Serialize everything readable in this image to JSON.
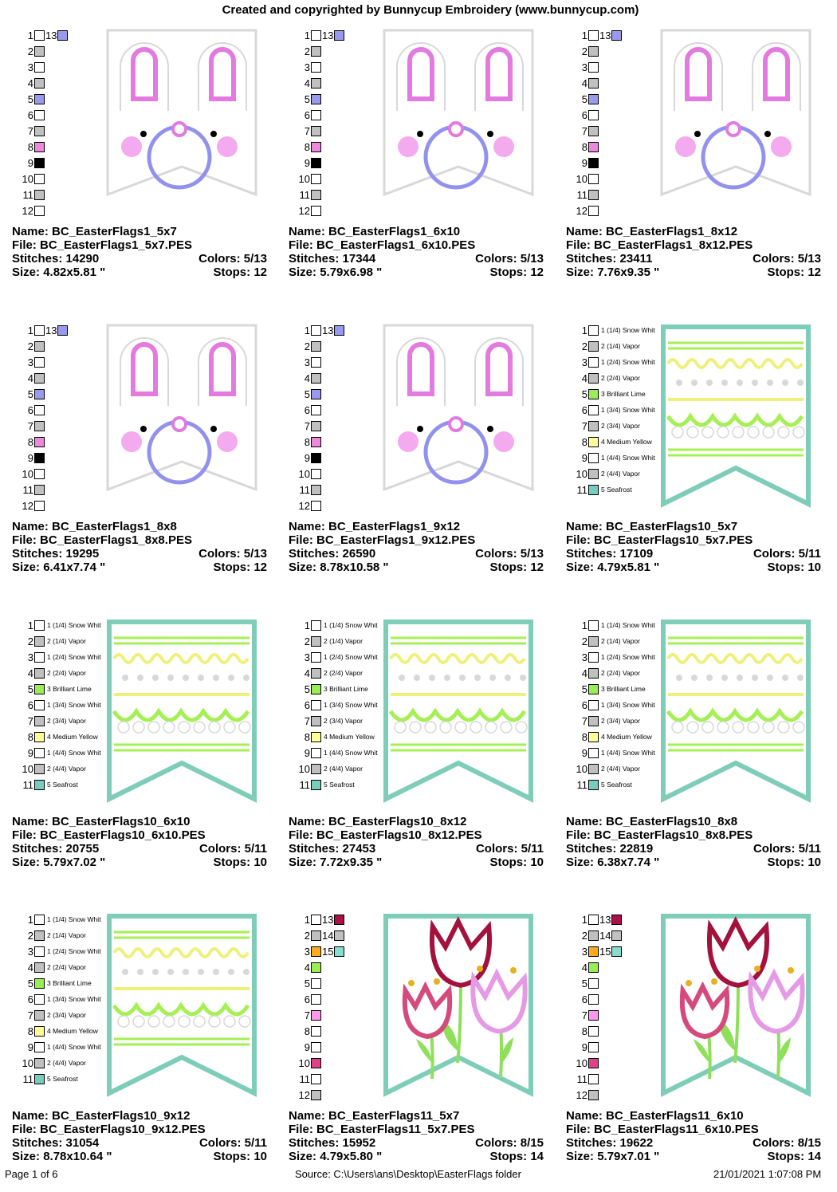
{
  "header": "Created and copyrighted by Bunnycup Embroidery (www.bunnycup.com)",
  "footer": {
    "page": "Page 1 of 6",
    "source": "Source: C:\\Users\\ans\\Desktop\\EasterFlags folder",
    "datetime": "21/01/2021 1:07:08 PM"
  },
  "labels": {
    "name": "Name:",
    "file": "File:",
    "stitches": "Stitches:",
    "colors": "Colors:",
    "size": "Size:",
    "stops": "Stops:"
  },
  "designs": [
    {
      "name": "BC_EasterFlags1_5x7",
      "file": "BC_EasterFlags1_5x7.PES",
      "stitches": "14290",
      "colors": "5/13",
      "size": "4.82x5.81 \"",
      "stops": "12",
      "kind": "bunny"
    },
    {
      "name": "BC_EasterFlags1_6x10",
      "file": "BC_EasterFlags1_6x10.PES",
      "stitches": "17344",
      "colors": "5/13",
      "size": "5.79x6.98 \"",
      "stops": "12",
      "kind": "bunny"
    },
    {
      "name": "BC_EasterFlags1_8x12",
      "file": "BC_EasterFlags1_8x12.PES",
      "stitches": "23411",
      "colors": "5/13",
      "size": "7.76x9.35 \"",
      "stops": "12",
      "kind": "bunny"
    },
    {
      "name": "BC_EasterFlags1_8x8",
      "file": "BC_EasterFlags1_8x8.PES",
      "stitches": "19295",
      "colors": "5/13",
      "size": "6.41x7.74 \"",
      "stops": "12",
      "kind": "bunny"
    },
    {
      "name": "BC_EasterFlags1_9x12",
      "file": "BC_EasterFlags1_9x12.PES",
      "stitches": "26590",
      "colors": "5/13",
      "size": "8.78x10.58 \"",
      "stops": "12",
      "kind": "bunny"
    },
    {
      "name": "BC_EasterFlags10_5x7",
      "file": "BC_EasterFlags10_5x7.PES",
      "stitches": "17109",
      "colors": "5/11",
      "size": "4.79x5.81 \"",
      "stops": "10",
      "kind": "egg"
    },
    {
      "name": "BC_EasterFlags10_6x10",
      "file": "BC_EasterFlags10_6x10.PES",
      "stitches": "20755",
      "colors": "5/11",
      "size": "5.79x7.02 \"",
      "stops": "10",
      "kind": "egg"
    },
    {
      "name": "BC_EasterFlags10_8x12",
      "file": "BC_EasterFlags10_8x12.PES",
      "stitches": "27453",
      "colors": "5/11",
      "size": "7.72x9.35 \"",
      "stops": "10",
      "kind": "egg"
    },
    {
      "name": "BC_EasterFlags10_8x8",
      "file": "BC_EasterFlags10_8x8.PES",
      "stitches": "22819",
      "colors": "5/11",
      "size": "6.38x7.74 \"",
      "stops": "10",
      "kind": "egg"
    },
    {
      "name": "BC_EasterFlags10_9x12",
      "file": "BC_EasterFlags10_9x12.PES",
      "stitches": "31054",
      "colors": "5/11",
      "size": "8.78x10.64 \"",
      "stops": "10",
      "kind": "egg"
    },
    {
      "name": "BC_EasterFlags11_5x7",
      "file": "BC_EasterFlags11_5x7.PES",
      "stitches": "15952",
      "colors": "8/15",
      "size": "4.79x5.80 \"",
      "stops": "14",
      "kind": "tulip"
    },
    {
      "name": "BC_EasterFlags11_6x10",
      "file": "BC_EasterFlags11_6x10.PES",
      "stitches": "19622",
      "colors": "8/15",
      "size": "5.79x7.01 \"",
      "stops": "14",
      "kind": "tulip"
    }
  ],
  "swatch_sets": {
    "bunny": [
      {
        "n": "1",
        "c": "#ffffff",
        "n2": "13",
        "c2": "#9999ee"
      },
      {
        "n": "2",
        "c": "#c0c0c0"
      },
      {
        "n": "3",
        "c": "#ffffff"
      },
      {
        "n": "4",
        "c": "#c0c0c0"
      },
      {
        "n": "5",
        "c": "#9999ee"
      },
      {
        "n": "6",
        "c": "#ffffff"
      },
      {
        "n": "7",
        "c": "#c0c0c0"
      },
      {
        "n": "8",
        "c": "#ee88dd"
      },
      {
        "n": "9",
        "c": "#000000"
      },
      {
        "n": "10",
        "c": "#ffffff"
      },
      {
        "n": "11",
        "c": "#c0c0c0"
      },
      {
        "n": "12",
        "c": "#ffffff"
      }
    ],
    "egg": [
      {
        "n": "1",
        "c": "#ffffff",
        "l": "1 (1/4) Snow Whit"
      },
      {
        "n": "2",
        "c": "#c0c0c0",
        "l": "2 (1/4) Vapor"
      },
      {
        "n": "3",
        "c": "#ffffff",
        "l": "1 (2/4) Snow Whit"
      },
      {
        "n": "4",
        "c": "#c0c0c0",
        "l": "2 (2/4) Vapor"
      },
      {
        "n": "5",
        "c": "#99ee55",
        "l": "3 Brilliant Lime"
      },
      {
        "n": "6",
        "c": "#ffffff",
        "l": "1 (3/4) Snow Whit"
      },
      {
        "n": "7",
        "c": "#c0c0c0",
        "l": "2 (3/4) Vapor"
      },
      {
        "n": "8",
        "c": "#ffff99",
        "l": "4 Medium Yellow"
      },
      {
        "n": "9",
        "c": "#ffffff",
        "l": "1 (4/4) Snow Whit"
      },
      {
        "n": "10",
        "c": "#c0c0c0",
        "l": "2 (4/4) Vapor"
      },
      {
        "n": "11",
        "c": "#77ccbb",
        "l": "5 Seafrost"
      }
    ],
    "tulip": [
      {
        "n": "1",
        "c": "#ffffff",
        "n2": "13",
        "c2": "#aa1144"
      },
      {
        "n": "2",
        "c": "#c0c0c0",
        "n2": "14",
        "c2": "#c0c0c0"
      },
      {
        "n": "3",
        "c": "#ffaa22",
        "n2": "15",
        "c2": "#88ddcc"
      },
      {
        "n": "4",
        "c": "#99ee55"
      },
      {
        "n": "5",
        "c": "#ffffff"
      },
      {
        "n": "6",
        "c": "#ffffff"
      },
      {
        "n": "7",
        "c": "#ff99ee"
      },
      {
        "n": "8",
        "c": "#ffffff"
      },
      {
        "n": "9",
        "c": "#ffffff"
      },
      {
        "n": "10",
        "c": "#dd4488"
      },
      {
        "n": "11",
        "c": "#ffffff"
      },
      {
        "n": "12",
        "c": "#c0c0c0"
      }
    ]
  },
  "colors": {
    "bunny_outline": "#d8d8d8",
    "ear": "#e27ae0",
    "nose": "#9292ee",
    "cheek": "#f4aaee",
    "eye": "#000000",
    "flag_border": "#7ecdb9",
    "lime": "#a6ef55",
    "yellow": "#eef07a",
    "dot": "#d8d8d8",
    "tulip_dark": "#a3123d",
    "tulip_mid": "#d54a7c",
    "tulip_light": "#e59ae6",
    "stem": "#8ee05a",
    "stamen": "#e8b020"
  }
}
